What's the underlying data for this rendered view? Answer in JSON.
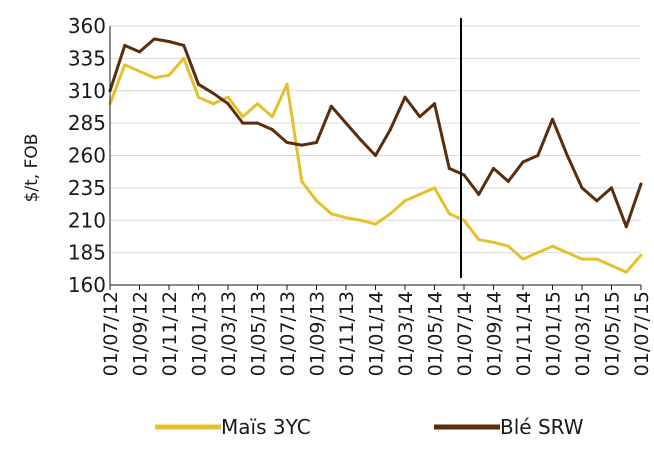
{
  "chart_data": {
    "type": "line",
    "ylabel": "$/t, FOB",
    "xlabel": "",
    "ylim": [
      160,
      360
    ],
    "y_ticks": [
      160,
      185,
      210,
      235,
      260,
      285,
      310,
      335,
      360
    ],
    "x_ticks": [
      "01/07/12",
      "01/09/12",
      "01/11/12",
      "01/01/13",
      "01/03/13",
      "01/05/13",
      "01/07/13",
      "01/09/13",
      "01/11/13",
      "01/01/14",
      "01/03/14",
      "01/05/14",
      "01/07/14",
      "01/09/14",
      "01/11/14",
      "01/01/15",
      "01/03/15",
      "01/05/15",
      "01/07/15"
    ],
    "grid": true,
    "legend_position": "bottom",
    "vertical_marker": {
      "x": "01/07/14"
    },
    "series": [
      {
        "name": "Maïs 3YC",
        "color": "#E6C02C",
        "x": [
          "01/07/12",
          "01/08/12",
          "01/09/12",
          "01/10/12",
          "01/11/12",
          "01/12/12",
          "01/01/13",
          "01/02/13",
          "01/03/13",
          "01/04/13",
          "01/05/13",
          "01/06/13",
          "01/07/13",
          "01/08/13",
          "01/09/13",
          "01/10/13",
          "01/11/13",
          "01/12/13",
          "01/01/14",
          "01/02/14",
          "01/03/14",
          "01/04/14",
          "01/05/14",
          "01/06/14",
          "01/07/14",
          "01/08/14",
          "01/09/14",
          "01/10/14",
          "01/11/14",
          "01/12/14",
          "01/01/15",
          "01/02/15",
          "01/03/15",
          "01/04/15",
          "01/05/15",
          "01/06/15",
          "01/07/15"
        ],
        "values": [
          300,
          330,
          325,
          320,
          322,
          335,
          305,
          300,
          305,
          290,
          300,
          290,
          315,
          240,
          225,
          215,
          212,
          210,
          207,
          215,
          225,
          230,
          235,
          215,
          210,
          195,
          193,
          190,
          180,
          185,
          190,
          185,
          180,
          180,
          175,
          170,
          183
        ]
      },
      {
        "name": "Blé SRW",
        "color": "#5A2D0C",
        "x": [
          "01/07/12",
          "01/08/12",
          "01/09/12",
          "01/10/12",
          "01/11/12",
          "01/12/12",
          "01/01/13",
          "01/02/13",
          "01/03/13",
          "01/04/13",
          "01/05/13",
          "01/06/13",
          "01/07/13",
          "01/08/13",
          "01/09/13",
          "01/10/13",
          "01/11/13",
          "01/12/13",
          "01/01/14",
          "01/02/14",
          "01/03/14",
          "01/04/14",
          "01/05/14",
          "01/06/14",
          "01/07/14",
          "01/08/14",
          "01/09/14",
          "01/10/14",
          "01/11/14",
          "01/12/14",
          "01/01/15",
          "01/02/15",
          "01/03/15",
          "01/04/15",
          "01/05/15",
          "01/06/15",
          "01/07/15"
        ],
        "values": [
          310,
          345,
          340,
          350,
          348,
          345,
          315,
          308,
          300,
          285,
          285,
          280,
          270,
          268,
          270,
          298,
          285,
          272,
          260,
          280,
          305,
          290,
          300,
          250,
          245,
          230,
          250,
          240,
          255,
          260,
          288,
          260,
          235,
          225,
          235,
          205,
          238
        ]
      }
    ]
  }
}
